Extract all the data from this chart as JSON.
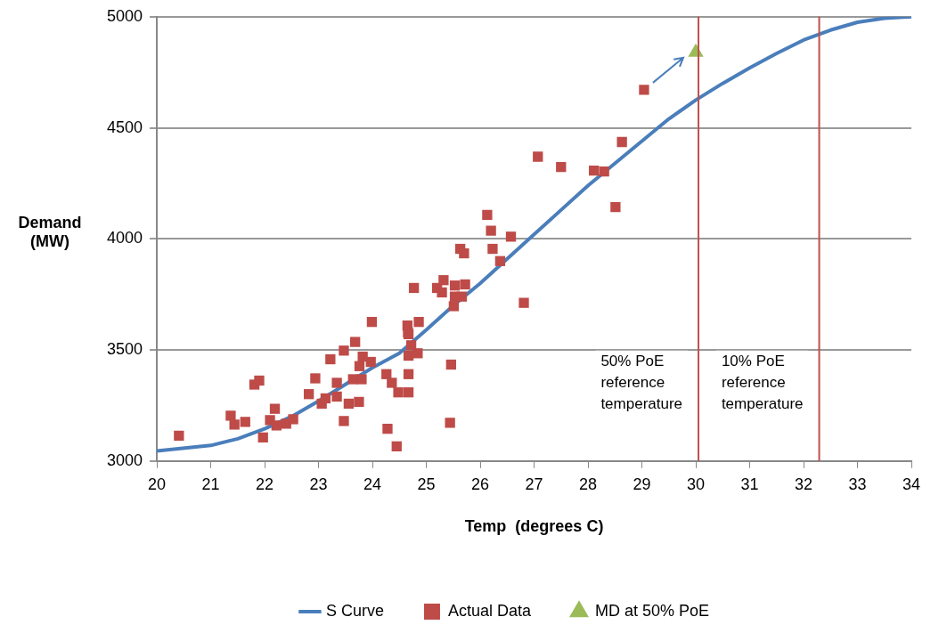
{
  "chart_data": {
    "type": "scatter",
    "xlabel": "Temp  (degrees C)",
    "ylabel": "Demand (MW)",
    "xlim": [
      20,
      34
    ],
    "xticks": [
      20,
      21,
      22,
      23,
      24,
      25,
      26,
      27,
      28,
      29,
      30,
      31,
      32,
      33,
      34
    ],
    "ylim": [
      3000,
      5000
    ],
    "yticks": [
      3000,
      3500,
      4000,
      4500,
      5000
    ],
    "grid": "y",
    "legend": "bottom",
    "series": [
      {
        "name": "S Curve",
        "type": "line",
        "color": "#4a7ebb",
        "marker": "none",
        "x": [
          20,
          21,
          21.5,
          22,
          22.5,
          23,
          23.5,
          24,
          24.5,
          25,
          25.5,
          26,
          26.5,
          27,
          27.5,
          28,
          28.5,
          29,
          29.5,
          30,
          30.5,
          31,
          31.5,
          32,
          32.5,
          33,
          33.5,
          34
        ],
        "values": [
          3045,
          3070,
          3100,
          3145,
          3200,
          3270,
          3345,
          3420,
          3485,
          3590,
          3700,
          3800,
          3910,
          4020,
          4130,
          4240,
          4340,
          4440,
          4540,
          4625,
          4700,
          4770,
          4835,
          4895,
          4940,
          4975,
          4993,
          5000
        ]
      },
      {
        "name": "Actual Data",
        "color": "#be4b48",
        "marker": "square",
        "x": [
          20.41,
          21.37,
          21.44,
          21.64,
          21.81,
          21.9,
          21.97,
          22.19,
          22.1,
          22.22,
          22.4,
          22.53,
          22.82,
          22.94,
          23.06,
          23.13,
          23.22,
          23.34,
          23.34,
          23.47,
          23.47,
          23.68,
          23.56,
          23.76,
          23.8,
          23.97,
          23.75,
          23.64,
          23.99,
          23.82,
          24.26,
          24.36,
          24.48,
          24.28,
          24.45,
          24.67,
          24.67,
          24.67,
          24.67,
          24.65,
          24.77,
          24.86,
          24.66,
          24.72,
          24.84,
          25.46,
          25.44,
          25.2,
          25.32,
          25.29,
          25.53,
          25.72,
          25.53,
          25.66,
          25.51,
          25.63,
          25.7,
          26.23,
          26.2,
          26.57,
          26.37,
          26.81,
          26.13,
          27.07,
          27.5,
          28.11,
          28.3,
          28.63,
          28.51,
          29.04
        ],
        "values": [
          3114,
          3204,
          3164,
          3176,
          3344,
          3362,
          3106,
          3235,
          3184,
          3160,
          3168,
          3188,
          3301,
          3372,
          3258,
          3282,
          3458,
          3352,
          3290,
          3180,
          3497,
          3536,
          3258,
          3427,
          3368,
          3446,
          3266,
          3368,
          3626,
          3470,
          3391,
          3352,
          3309,
          3145,
          3066,
          3309,
          3391,
          3474,
          3571,
          3610,
          3779,
          3626,
          3579,
          3521,
          3485,
          3434,
          3172,
          3779,
          3814,
          3759,
          3790,
          3795,
          3740,
          3740,
          3697,
          3955,
          3935,
          3955,
          4037,
          4010,
          3900,
          3712,
          4108,
          4370,
          4323,
          4307,
          4303,
          4436,
          4143,
          4671
        ]
      },
      {
        "name": "MD at 50% PoE",
        "color": "#9bbb59",
        "marker": "triangle",
        "x": [
          30
        ],
        "values": [
          4840
        ]
      }
    ],
    "ref_lines": [
      {
        "axis": "x",
        "value": 30.05,
        "label": "50% PoE reference temperature",
        "color": "#c0504d"
      },
      {
        "axis": "x",
        "value": 32.29,
        "label": "10% PoE reference temperature",
        "color": "#c0504d"
      }
    ]
  }
}
